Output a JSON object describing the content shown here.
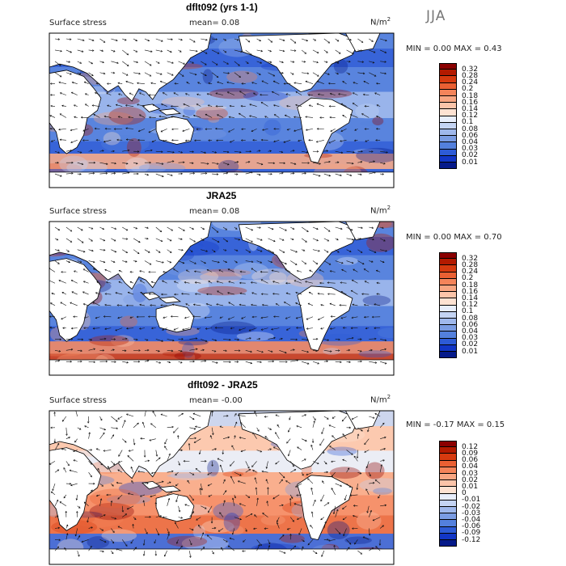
{
  "season": "JJA",
  "units_main": "N/m",
  "units_sup": "2",
  "panels": [
    {
      "title": "dflt092 (yrs 1-1)",
      "field": "Surface stress",
      "mean": "mean=    0.08",
      "minmax": "MIN =     0.00  MAX =     0.43",
      "palette": "positive"
    },
    {
      "title": "JRA25",
      "field": "Surface stress",
      "mean": "mean=    0.08",
      "minmax": "MIN =     0.00  MAX =     0.70",
      "palette": "positive"
    },
    {
      "title": "dflt092 - JRA25",
      "field": "Surface stress",
      "mean": "mean=  -0.00",
      "minmax": "MIN =  -0.17  MAX =     0.15",
      "palette": "difference"
    }
  ],
  "colorbars": {
    "positive": {
      "labels": [
        "0.32",
        "0.28",
        "0.24",
        "0.2",
        "0.18",
        "0.16",
        "0.14",
        "0.12",
        "0.1",
        "0.08",
        "0.06",
        "0.04",
        "0.03",
        "0.02",
        "0.01"
      ],
      "colors": [
        "#8b0000",
        "#b31a00",
        "#d63a0f",
        "#ea6033",
        "#f4845a",
        "#f8a682",
        "#fbc4a9",
        "#fde2d2",
        "#e8eefb",
        "#c4d4f3",
        "#9fb8ec",
        "#7a9ce3",
        "#5380dd",
        "#2d5bd6",
        "#1236c6",
        "#061a8a"
      ]
    },
    "difference": {
      "labels": [
        "0.12",
        "0.09",
        "0.06",
        "0.04",
        "0.03",
        "0.02",
        "0.01",
        "0",
        "-0.01",
        "-0.02",
        "-0.03",
        "-0.04",
        "-0.06",
        "-0.09",
        "-0.12"
      ],
      "colors": [
        "#8b0000",
        "#b31a00",
        "#d63a0f",
        "#ea6033",
        "#f4845a",
        "#f8a682",
        "#fbc4a9",
        "#fde2d2",
        "#e8eefb",
        "#c4d4f3",
        "#9fb8ec",
        "#7a9ce3",
        "#5380dd",
        "#2d5bd6",
        "#1236c6",
        "#061a8a"
      ]
    }
  }
}
